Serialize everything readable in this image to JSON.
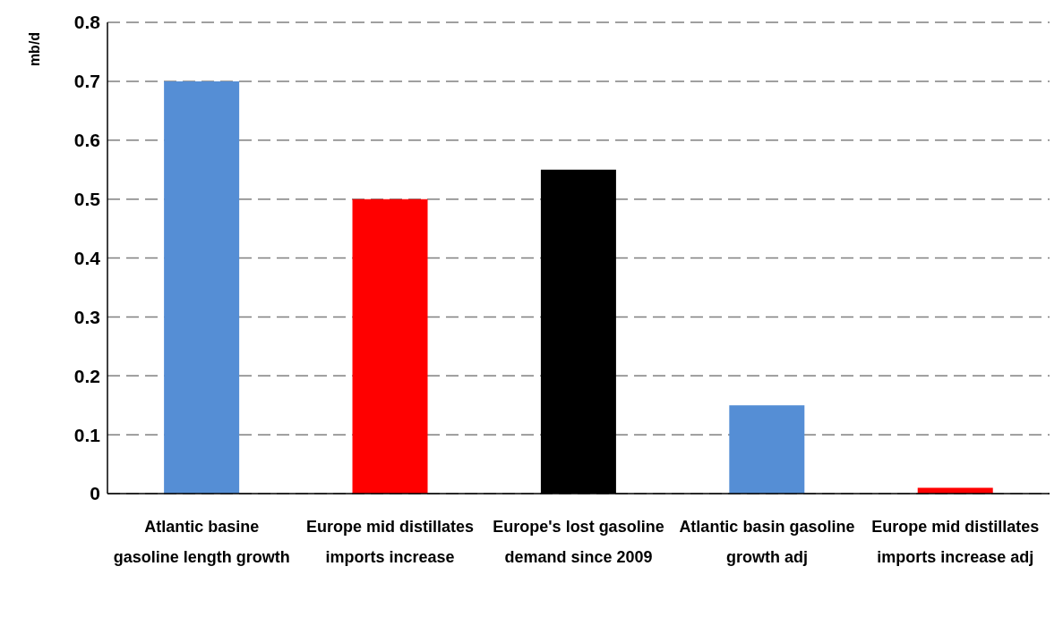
{
  "chart_data": {
    "type": "bar",
    "ylabel": "mb/d",
    "categories": [
      "Atlantic basine gasoline length growth",
      "Europe mid distillates imports increase",
      "Europe's lost gasoline demand since 2009",
      "Atlantic basin gasoline growth adj",
      "Europe mid distillates imports increase adj"
    ],
    "values": [
      0.7,
      0.5,
      0.55,
      0.15,
      0.01
    ],
    "colors": [
      "#558ed5",
      "#ff0000",
      "#000000",
      "#558ed5",
      "#ff0000"
    ],
    "ylim": [
      0,
      0.8
    ],
    "yticks": [
      0,
      0.1,
      0.2,
      0.3,
      0.4,
      0.5,
      0.6,
      0.7,
      0.8
    ],
    "grid": "y"
  }
}
